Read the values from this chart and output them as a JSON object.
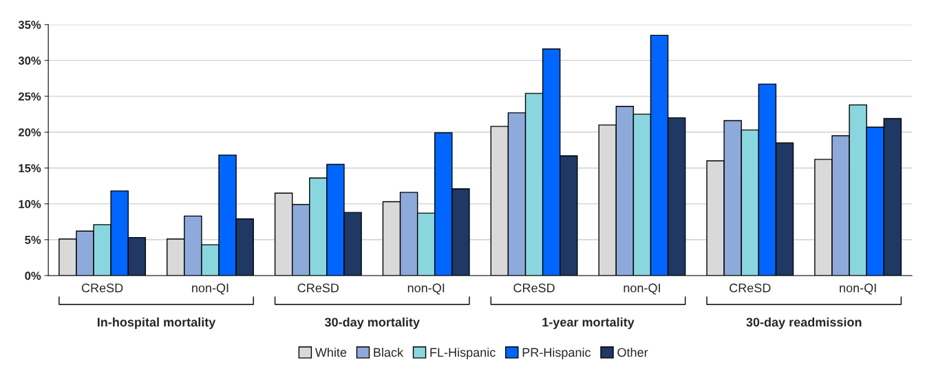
{
  "chart_data": {
    "type": "bar",
    "categories": [
      "CReSD",
      "non-QI",
      "CReSD",
      "non-QI",
      "CReSD",
      "non-QI",
      "CReSD",
      "non-QI"
    ],
    "series": [
      {
        "name": "White",
        "color": "#d9d9d9",
        "values": [
          5.1,
          5.1,
          11.5,
          10.3,
          20.8,
          21.0,
          16.0,
          16.2
        ]
      },
      {
        "name": "Black",
        "color": "#8eaadb",
        "values": [
          6.2,
          8.3,
          9.9,
          11.6,
          22.7,
          23.6,
          21.6,
          19.5
        ]
      },
      {
        "name": "FL-Hispanic",
        "color": "#8ad6de",
        "values": [
          7.1,
          4.3,
          13.6,
          8.7,
          25.4,
          22.5,
          20.3,
          23.8
        ]
      },
      {
        "name": "PR-Hispanic",
        "color": "#0066ff",
        "values": [
          11.8,
          16.8,
          15.5,
          19.9,
          31.6,
          33.5,
          26.7,
          20.7
        ]
      },
      {
        "name": "Other",
        "color": "#1f3864",
        "values": [
          5.3,
          7.9,
          8.8,
          12.1,
          16.7,
          22.0,
          18.5,
          21.9
        ]
      }
    ],
    "annotations": [
      "In-hospital mortality",
      "30-day mortality",
      "1-year mortality",
      "30-day readmission"
    ],
    "ylim": [
      0,
      35
    ],
    "yticks": [
      {
        "value": 0,
        "label": "0%"
      },
      {
        "value": 5,
        "label": "5%"
      },
      {
        "value": 10,
        "label": "10%"
      },
      {
        "value": 15,
        "label": "15%"
      },
      {
        "value": 20,
        "label": "20%"
      },
      {
        "value": 25,
        "label": "25%"
      },
      {
        "value": 30,
        "label": "30%"
      },
      {
        "value": 35,
        "label": "35%"
      }
    ],
    "grid": "y",
    "legend": "bottom"
  }
}
